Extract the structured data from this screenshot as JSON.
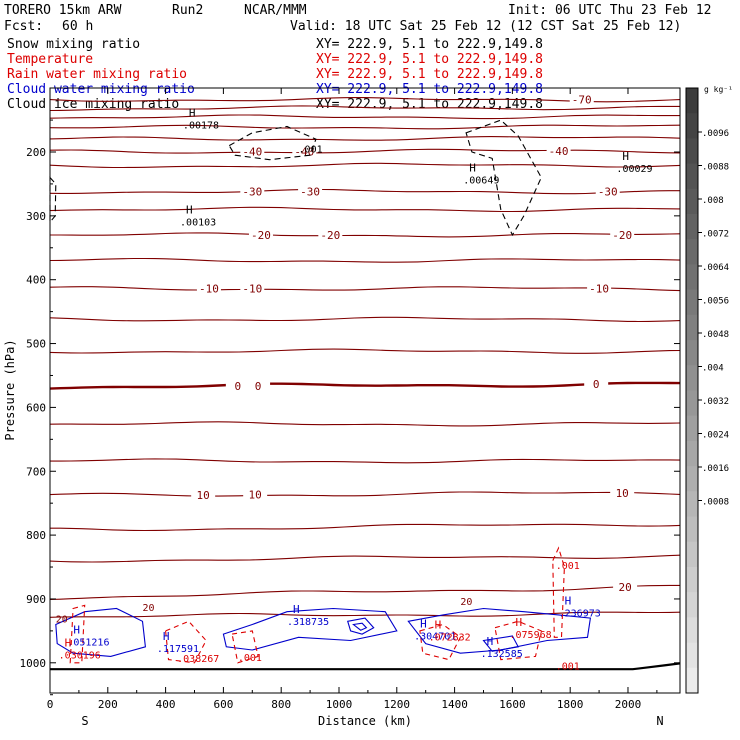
{
  "header": {
    "model": "TORERO 15km ARW",
    "run": "Run2",
    "org": "NCAR/MMM",
    "init": "Init: 06 UTC Thu 23 Feb 12",
    "fcst_label": "Fcst:",
    "fcst_value": "60 h",
    "valid": "Valid: 18 UTC Sat 25 Feb 12 (12 CST Sat 25 Feb 12)"
  },
  "colors": {
    "temperature": "#800000",
    "rain": "#dd0000",
    "cloud_water": "#0000cc",
    "black": "#000000"
  },
  "chart_data": {
    "type": "cross-section contour",
    "xlabel": "Distance (km)",
    "ylabel": "Pressure (hPa)",
    "xlim": [
      0,
      2180
    ],
    "ylim_hpa": [
      1050,
      100
    ],
    "x_ticks": [
      0,
      200,
      400,
      600,
      800,
      1000,
      1200,
      1400,
      1600,
      1800,
      2000
    ],
    "y_ticks": [
      200,
      300,
      400,
      500,
      600,
      700,
      800,
      900,
      1000
    ],
    "end_labels": {
      "left": "S",
      "right": "N"
    },
    "fields": [
      {
        "name": "Snow mixing ratio",
        "color": "#000000",
        "xy": "XY= 222.9,  5.1 to 222.9,149.8",
        "role": "shaded"
      },
      {
        "name": "Temperature",
        "color": "#dd0000",
        "xy": "XY= 222.9,  5.1 to 222.9,149.8",
        "role": "contour"
      },
      {
        "name": "Rain water mixing ratio",
        "color": "#dd0000",
        "xy": "XY= 222.9,  5.1 to 222.9,149.8",
        "role": "contour"
      },
      {
        "name": "Cloud water mixing ratio",
        "color": "#0000cc",
        "xy": "XY= 222.9,  5.1 to 222.9,149.8",
        "role": "contour"
      },
      {
        "name": "Cloud ice mixing ratio",
        "color": "#000000",
        "xy": "XY= 222.9,  5.1 to 222.9,149.8",
        "role": "contour"
      }
    ],
    "colorbar": {
      "unit": "g kg⁻¹",
      "labels": [
        ".0096",
        ".0088",
        ".008",
        ".0072",
        ".0064",
        ".0056",
        ".0048",
        ".004",
        ".0032",
        ".0024",
        ".0016",
        ".0008"
      ]
    },
    "isotherms": [
      {
        "t": -70,
        "p_left": 118,
        "p_right": 118,
        "labels": [
          {
            "x": 1840,
            "text": "-70"
          }
        ]
      },
      {
        "t": null,
        "p_left": 132,
        "p_right": 130,
        "labels": []
      },
      {
        "t": null,
        "p_left": 146,
        "p_right": 144,
        "labels": []
      },
      {
        "t": null,
        "p_left": 162,
        "p_right": 160,
        "labels": []
      },
      {
        "t": null,
        "p_left": 180,
        "p_right": 178,
        "labels": []
      },
      {
        "t": -40,
        "p_left": 200,
        "p_right": 198,
        "labels": [
          {
            "x": 700,
            "text": "-40"
          },
          {
            "x": 880,
            "text": "-40"
          },
          {
            "x": 1760,
            "text": "-40"
          }
        ]
      },
      {
        "t": null,
        "p_left": 222,
        "p_right": 220,
        "labels": []
      },
      {
        "t": -30,
        "p_left": 262,
        "p_right": 262,
        "labels": [
          {
            "x": 700,
            "text": "-30"
          },
          {
            "x": 900,
            "text": "-30"
          },
          {
            "x": 1930,
            "text": "-30"
          }
        ]
      },
      {
        "t": null,
        "p_left": 290,
        "p_right": 290,
        "labels": []
      },
      {
        "t": -20,
        "p_left": 330,
        "p_right": 330,
        "labels": [
          {
            "x": 730,
            "text": "-20"
          },
          {
            "x": 970,
            "text": "-20"
          },
          {
            "x": 1980,
            "text": "-20"
          }
        ]
      },
      {
        "t": null,
        "p_left": 370,
        "p_right": 370,
        "labels": []
      },
      {
        "t": -10,
        "p_left": 414,
        "p_right": 414,
        "labels": [
          {
            "x": 550,
            "text": "-10"
          },
          {
            "x": 700,
            "text": "-10"
          },
          {
            "x": 1900,
            "text": "-10"
          }
        ]
      },
      {
        "t": null,
        "p_left": 462,
        "p_right": 462,
        "labels": []
      },
      {
        "t": null,
        "p_left": 512,
        "p_right": 512,
        "labels": []
      },
      {
        "t": 0,
        "p_left": 568,
        "p_right": 563,
        "labels": [
          {
            "x": 650,
            "text": "0"
          },
          {
            "x": 720,
            "text": "0"
          },
          {
            "x": 1890,
            "text": "0"
          }
        ]
      },
      {
        "t": null,
        "p_left": 626,
        "p_right": 626,
        "labels": []
      },
      {
        "t": null,
        "p_left": 684,
        "p_right": 684,
        "labels": []
      },
      {
        "t": 10,
        "p_left": 738,
        "p_right": 734,
        "labels": [
          {
            "x": 530,
            "text": "10"
          },
          {
            "x": 710,
            "text": "10"
          },
          {
            "x": 1980,
            "text": "10"
          }
        ]
      },
      {
        "t": null,
        "p_left": 792,
        "p_right": 782,
        "labels": []
      },
      {
        "t": null,
        "p_left": 840,
        "p_right": 832,
        "labels": []
      },
      {
        "t": 20,
        "p_left": 898,
        "p_right": 880,
        "labels": [
          {
            "x": 1990,
            "text": "20"
          }
        ]
      },
      {
        "t": null,
        "p_left": 928,
        "p_right": 922,
        "labels": []
      }
    ],
    "surface_p": 1010,
    "annotations": [
      {
        "x": 460,
        "p": 160,
        "text": ".00178",
        "color": "black",
        "h": true
      },
      {
        "x": 860,
        "p": 198,
        "text": ".001",
        "color": "black",
        "h": false
      },
      {
        "x": 1430,
        "p": 246,
        "text": ".00649",
        "color": "black",
        "h": true
      },
      {
        "x": 1960,
        "p": 228,
        "text": ".00029",
        "color": "black",
        "h": true
      },
      {
        "x": 450,
        "p": 312,
        "text": ".00103",
        "color": "black",
        "h": true
      },
      {
        "x": 820,
        "p": 938,
        "text": ".318735",
        "color": "blue",
        "h": true
      },
      {
        "x": 60,
        "p": 970,
        "text": ".051216",
        "color": "blue",
        "h": true
      },
      {
        "x": 370,
        "p": 980,
        "text": ".117591",
        "color": "blue",
        "h": true
      },
      {
        "x": 1260,
        "p": 960,
        "text": ".304701",
        "color": "blue",
        "h": true
      },
      {
        "x": 1490,
        "p": 988,
        "text": ".132585",
        "color": "blue",
        "h": true
      },
      {
        "x": 1760,
        "p": 924,
        "text": ".236973",
        "color": "blue",
        "h": true
      },
      {
        "x": 30,
        "p": 990,
        "text": ".030196",
        "color": "red",
        "h": true
      },
      {
        "x": 440,
        "p": 996,
        "text": ".038267",
        "color": "red",
        "h": false
      },
      {
        "x": 650,
        "p": 994,
        "text": ".001",
        "color": "red",
        "h": false
      },
      {
        "x": 1310,
        "p": 962,
        "text": ".072832",
        "color": "red",
        "h": true
      },
      {
        "x": 1590,
        "p": 958,
        "text": ".075968",
        "color": "red",
        "h": true
      },
      {
        "x": 1750,
        "p": 850,
        "text": ".001",
        "color": "red",
        "h": false
      },
      {
        "x": 1750,
        "p": 1007,
        "text": ".001",
        "color": "red",
        "h": false
      },
      {
        "x": 320,
        "p": 916,
        "text": "20",
        "color": "maroon",
        "h": false
      },
      {
        "x": 1420,
        "p": 906,
        "text": "20",
        "color": "maroon",
        "h": false
      },
      {
        "x": 20,
        "p": 934,
        "text": "20",
        "color": "maroon",
        "h": false
      }
    ]
  }
}
